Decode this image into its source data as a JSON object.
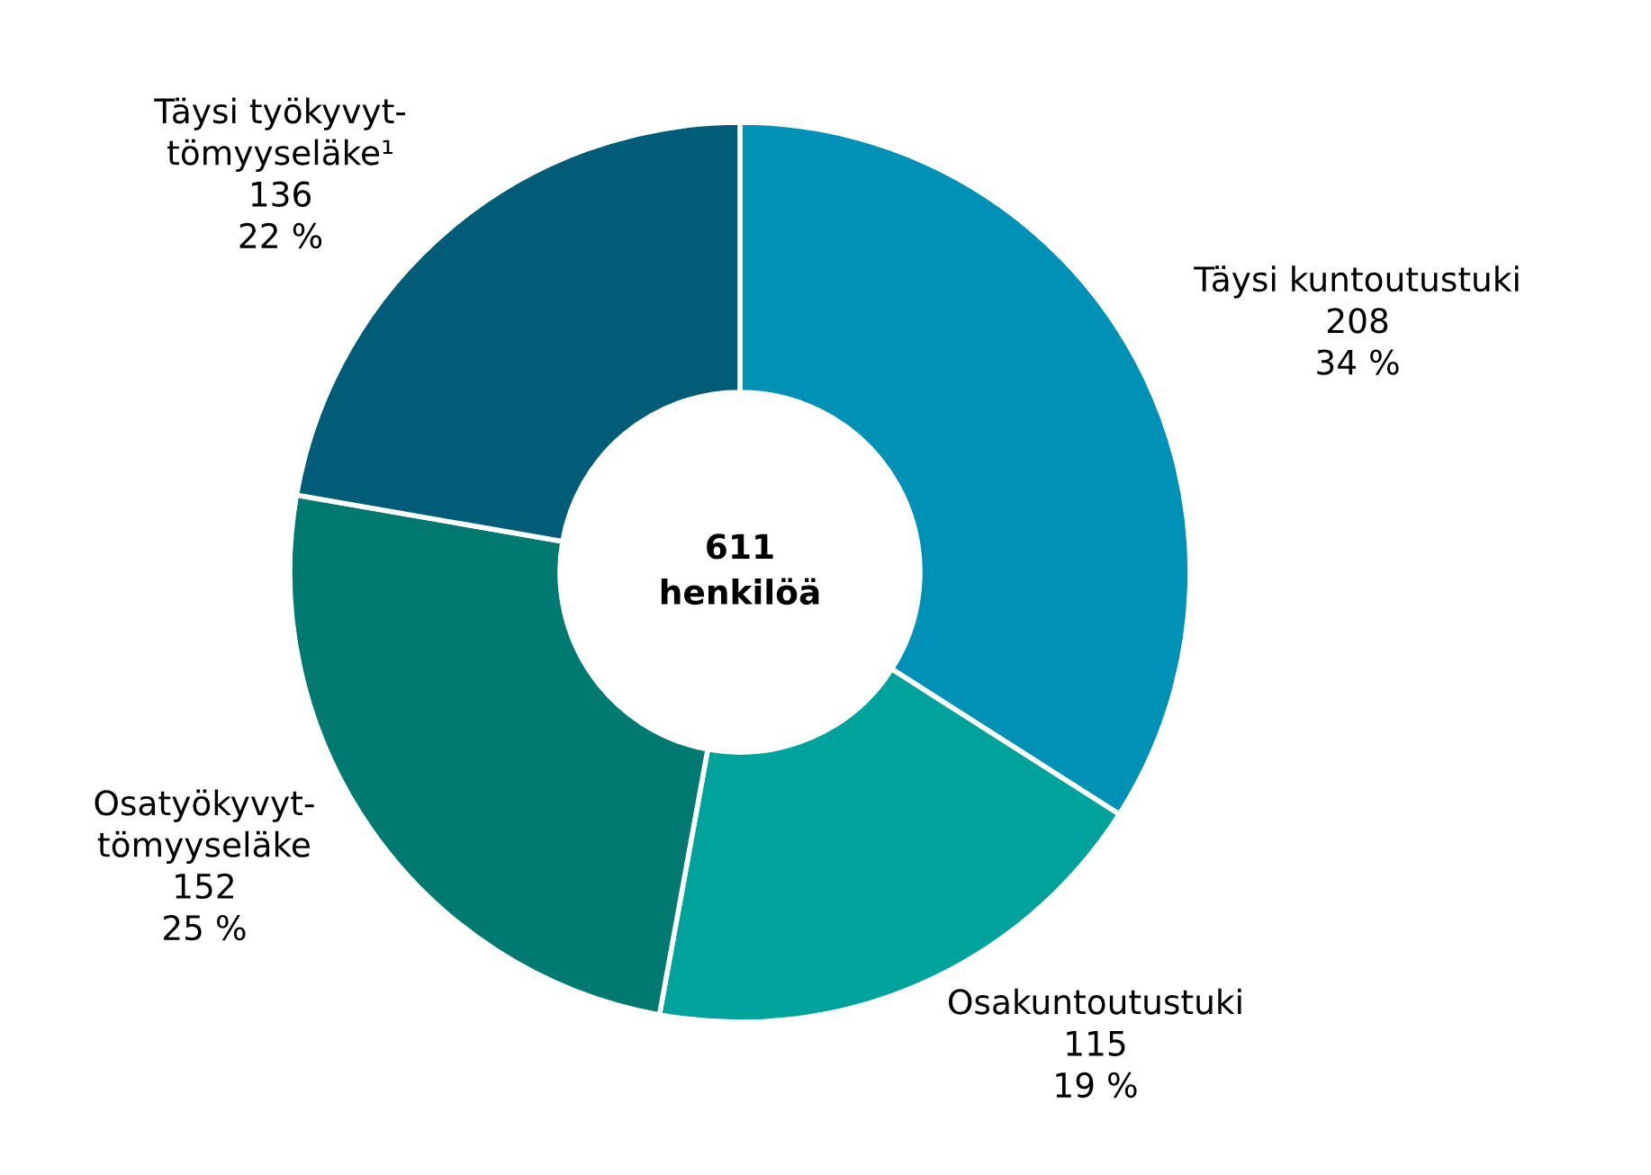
{
  "chart_data": {
    "type": "donut",
    "categories": [
      "Täysi kuntoutustuki",
      "Osakuntoutustuki",
      "Osatyökyvyt-\ntömyyseläke",
      "Täysi työkyvyt-\ntömyyseläke¹"
    ],
    "values": [
      208,
      115,
      152,
      136
    ],
    "value_labels": [
      "208\n34 %",
      "115\n19 %",
      "152\n25 %",
      "136\n22 %"
    ],
    "colors": [
      "#0091b7",
      "#00a39b",
      "#007a70",
      "#005c77"
    ],
    "annotations": [
      "611\nhenkilöä"
    ]
  }
}
